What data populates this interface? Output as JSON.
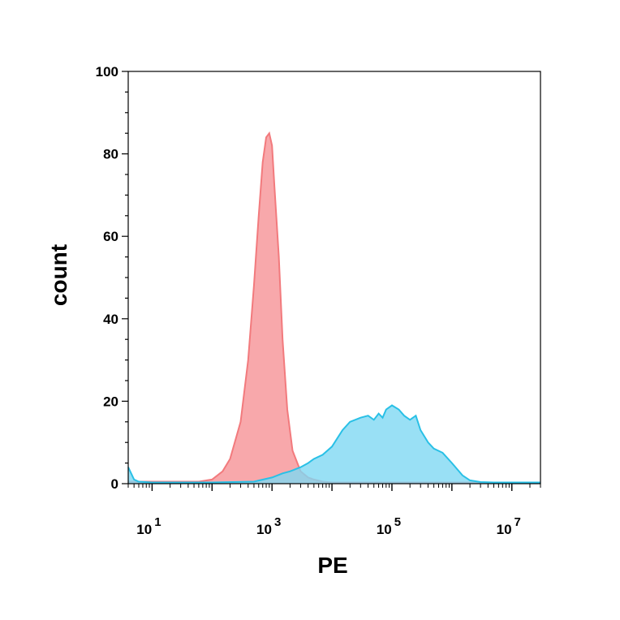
{
  "chart_data": {
    "type": "area",
    "xlabel": "PE",
    "ylabel": "count",
    "x_scale": "log10",
    "xlim": [
      4,
      30000000
    ],
    "ylim": [
      0,
      100
    ],
    "y_ticks": [
      0,
      20,
      40,
      60,
      80,
      100
    ],
    "x_ticks": [
      {
        "value": 10,
        "base": "10",
        "exp": "1"
      },
      {
        "value": 1000,
        "base": "10",
        "exp": "3"
      },
      {
        "value": 100000,
        "base": "10",
        "exp": "5"
      },
      {
        "value": 10000000,
        "base": "10",
        "exp": "7"
      }
    ],
    "grid": false,
    "legend": "none",
    "series": [
      {
        "color": "#f27a7d",
        "fill": "#f8a3a6",
        "x": [
          4,
          10,
          30,
          60,
          100,
          150,
          200,
          300,
          400,
          500,
          600,
          700,
          800,
          900,
          1000,
          1100,
          1300,
          1500,
          1800,
          2200,
          3000,
          4000,
          5000,
          7000,
          10000,
          30000000
        ],
        "y": [
          0.5,
          0.5,
          0.5,
          0.5,
          1,
          3,
          6,
          15,
          30,
          48,
          65,
          78,
          84,
          85,
          82,
          72,
          55,
          35,
          18,
          8,
          3,
          1.5,
          1,
          0.5,
          0.3,
          0.3
        ]
      },
      {
        "color": "#29c0e6",
        "fill": "#7fd8f3",
        "x": [
          4,
          5,
          6,
          10,
          100,
          500,
          1000,
          1500,
          2000,
          3000,
          4000,
          5000,
          7000,
          10000,
          15000,
          20000,
          30000,
          40000,
          50000,
          60000,
          70000,
          80000,
          100000,
          130000,
          160000,
          200000,
          250000,
          300000,
          400000,
          500000,
          700000,
          1000000,
          1500000,
          2000000,
          3000000,
          5000000,
          30000000
        ],
        "y": [
          4,
          1,
          0.5,
          0.3,
          0.3,
          0.5,
          1.5,
          2.5,
          3,
          4,
          5,
          6,
          7,
          9,
          13,
          15,
          16,
          16.5,
          15.5,
          17,
          16,
          18,
          19,
          18,
          16.5,
          15.5,
          16.5,
          13,
          10,
          8.5,
          7.5,
          5,
          2,
          0.8,
          0.4,
          0.3,
          0.3
        ]
      }
    ]
  }
}
